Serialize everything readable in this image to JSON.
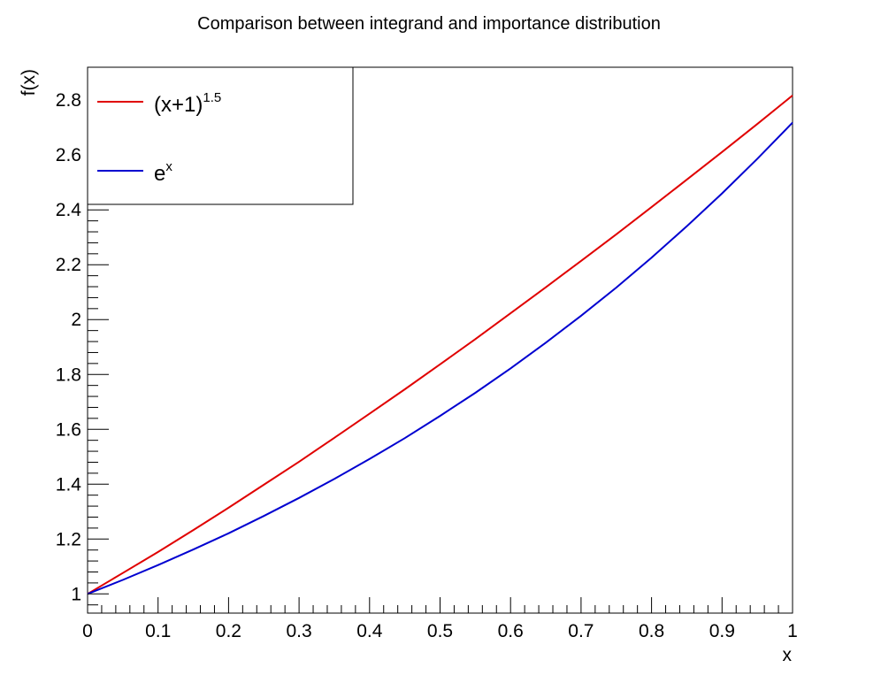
{
  "chart_data": {
    "type": "line",
    "title": "Comparison between integrand and importance distribution",
    "xlabel": "x",
    "ylabel": "f(x)",
    "xlim": [
      0,
      1
    ],
    "ylim": [
      0.93,
      2.92
    ],
    "x_ticks": [
      0,
      0.1,
      0.2,
      0.3,
      0.4,
      0.5,
      0.6,
      0.7,
      0.8,
      0.9,
      1
    ],
    "x_tick_labels": [
      "0",
      "0.1",
      "0.2",
      "0.3",
      "0.4",
      "0.5",
      "0.6",
      "0.7",
      "0.8",
      "0.9",
      "1"
    ],
    "y_ticks": [
      1,
      1.2,
      1.4,
      1.6,
      1.8,
      2,
      2.2,
      2.4,
      2.6,
      2.8
    ],
    "y_tick_labels": [
      "1",
      "1.2",
      "1.4",
      "1.6",
      "1.8",
      "2",
      "2.2",
      "2.4",
      "2.6",
      "2.8"
    ],
    "grid": false,
    "legend_position": "top-left",
    "series": [
      {
        "legend_base": "(x+1)",
        "legend_sup": "1.5",
        "color": "#e00000",
        "x": [
          0,
          0.05,
          0.1,
          0.15,
          0.2,
          0.25,
          0.3,
          0.35,
          0.4,
          0.45,
          0.5,
          0.55,
          0.6,
          0.65,
          0.7,
          0.75,
          0.8,
          0.85,
          0.9,
          0.95,
          1
        ],
        "y": [
          1.0,
          1.076,
          1.153,
          1.233,
          1.314,
          1.398,
          1.482,
          1.569,
          1.657,
          1.746,
          1.837,
          1.929,
          2.023,
          2.118,
          2.214,
          2.311,
          2.41,
          2.51,
          2.611,
          2.713,
          2.817
        ]
      },
      {
        "legend_base": "e",
        "legend_sup": "x",
        "color": "#0000d0",
        "x": [
          0,
          0.05,
          0.1,
          0.15,
          0.2,
          0.25,
          0.3,
          0.35,
          0.4,
          0.45,
          0.5,
          0.55,
          0.6,
          0.65,
          0.7,
          0.75,
          0.8,
          0.85,
          0.9,
          0.95,
          1
        ],
        "y": [
          1.0,
          1.051,
          1.105,
          1.162,
          1.221,
          1.284,
          1.35,
          1.419,
          1.492,
          1.568,
          1.649,
          1.733,
          1.822,
          1.916,
          2.014,
          2.117,
          2.226,
          2.34,
          2.46,
          2.586,
          2.718
        ]
      }
    ]
  }
}
